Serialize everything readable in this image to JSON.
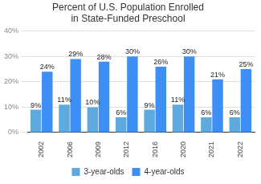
{
  "chart_data": {
    "type": "bar",
    "title": [
      "Percent of U.S. Population Enrolled",
      "in State-Funded Preschool"
    ],
    "categories": [
      "2002",
      "2006",
      "2009",
      "2012",
      "2016",
      "2020",
      "2021",
      "2022"
    ],
    "series": [
      {
        "name": "3-year-olds",
        "color": "#5ea9dd",
        "values": [
          9,
          11,
          10,
          6,
          9,
          11,
          6,
          6
        ],
        "value_labels": [
          "9%",
          "11%",
          "10%",
          "6%",
          "9%",
          "11%",
          "6%",
          "6%"
        ]
      },
      {
        "name": "4-year-olds",
        "color": "#3d8ef5",
        "values": [
          24,
          29,
          28,
          30,
          26,
          30,
          21,
          25
        ],
        "value_labels": [
          "24%",
          "29%",
          "28%",
          "30%",
          "26%",
          "30%",
          "21%",
          "25%"
        ]
      }
    ],
    "ylim": [
      0,
      40
    ],
    "yticks": [
      {
        "value": 0,
        "label": "0%"
      },
      {
        "value": 10,
        "label": "10%"
      },
      {
        "value": 20,
        "label": "20%"
      },
      {
        "value": 30,
        "label": "30%"
      },
      {
        "value": 40,
        "label": "40%"
      }
    ],
    "grid": true,
    "legend": "bottom",
    "data_labels": true
  }
}
